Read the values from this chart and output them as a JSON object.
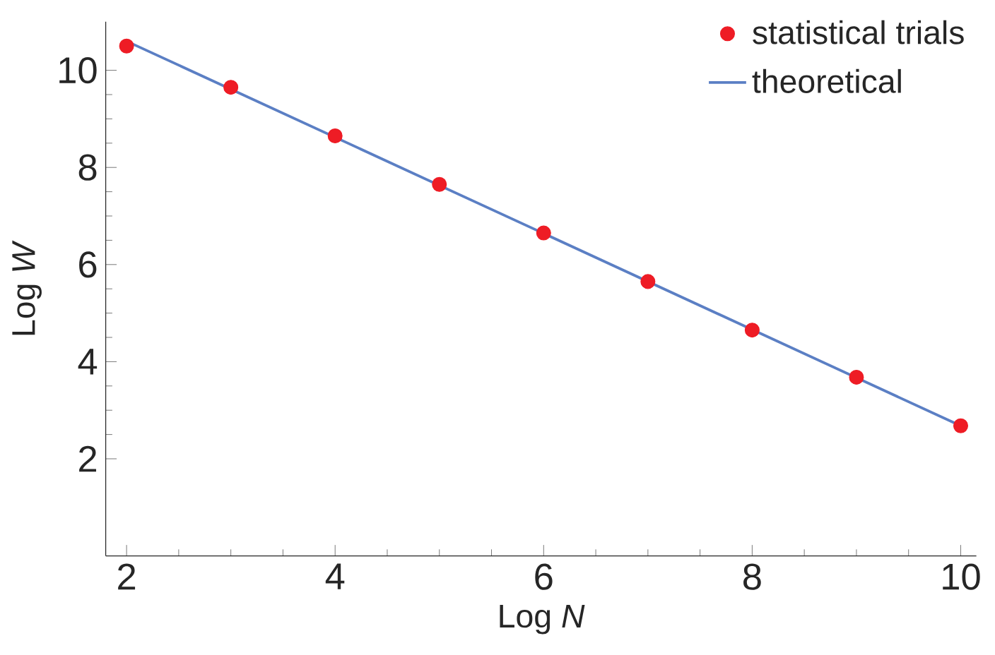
{
  "chart_data": {
    "type": "scatter",
    "xlabel": "Log *N*",
    "ylabel": "Log *W*",
    "xlim": [
      1.8,
      10.15
    ],
    "ylim": [
      0,
      11
    ],
    "xticks": [
      2,
      4,
      6,
      8,
      10
    ],
    "yticks": [
      2,
      4,
      6,
      8,
      10
    ],
    "grid": false,
    "legend": "top right",
    "series": [
      {
        "name": "statistical trials",
        "marker": "circle",
        "color": "#ee1c25",
        "x": [
          2,
          3,
          4,
          5,
          6,
          7,
          8,
          9,
          10
        ],
        "values": [
          10.5,
          9.65,
          8.65,
          7.65,
          6.65,
          5.65,
          4.65,
          3.68,
          2.68
        ]
      },
      {
        "name": "theoretical",
        "type": "line",
        "marker": "none",
        "color": "#5b7fc4",
        "x": [
          2,
          10
        ],
        "values": [
          10.6,
          2.68
        ]
      }
    ]
  }
}
